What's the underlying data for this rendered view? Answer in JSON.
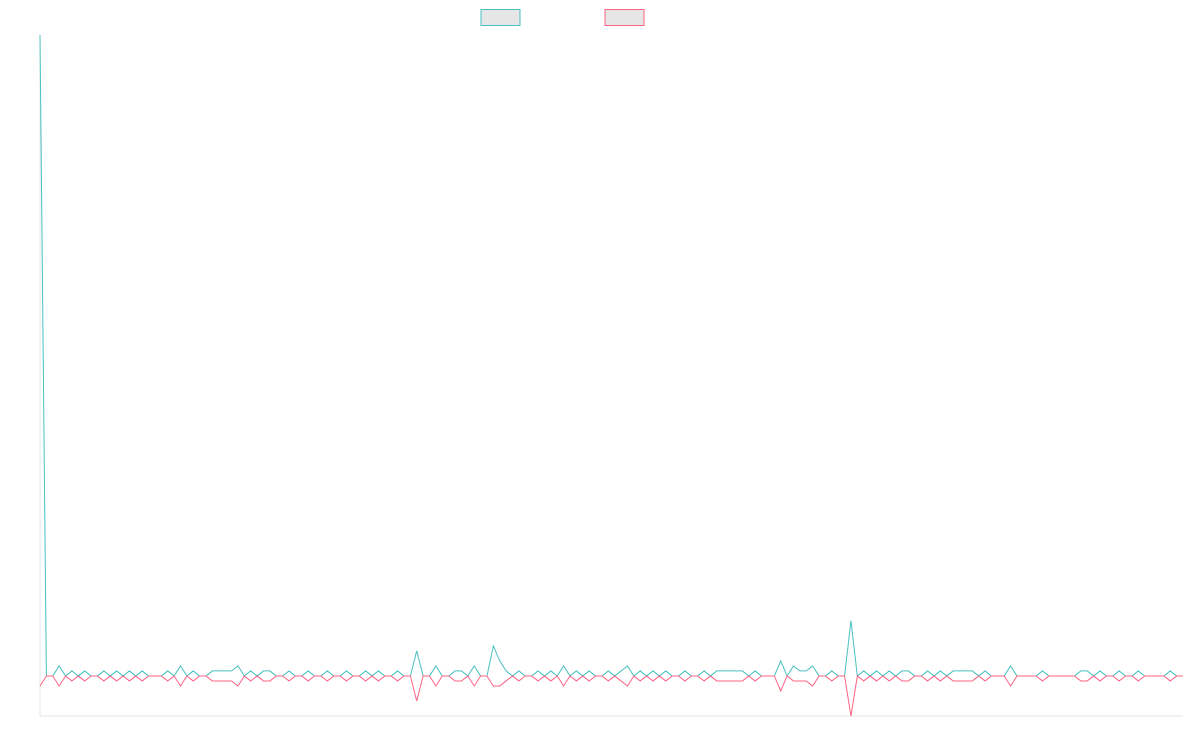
{
  "chart_data": {
    "type": "line",
    "series": [
      {
        "color": "#4bc0c0",
        "values": [
          128,
          0,
          0,
          2,
          0,
          1,
          0,
          1,
          0,
          0,
          1,
          0,
          1,
          0,
          1,
          0,
          1,
          0,
          0,
          0,
          1,
          0,
          2,
          0,
          1,
          0,
          0,
          1,
          1,
          1,
          1,
          2,
          0,
          1,
          0,
          1,
          1,
          0,
          0,
          1,
          0,
          0,
          1,
          0,
          0,
          1,
          0,
          0,
          1,
          0,
          0,
          1,
          0,
          1,
          0,
          0,
          1,
          0,
          0,
          5,
          0,
          0,
          2,
          0,
          0,
          1,
          1,
          0,
          2,
          0,
          0,
          6,
          3,
          1,
          0,
          1,
          0,
          0,
          1,
          0,
          1,
          0,
          2,
          0,
          1,
          0,
          1,
          0,
          0,
          1,
          0,
          1,
          2,
          0,
          1,
          0,
          1,
          0,
          1,
          0,
          0,
          1,
          0,
          0,
          1,
          0,
          1,
          1,
          1,
          1,
          1,
          0,
          1,
          0,
          0,
          0,
          3,
          0,
          2,
          1,
          1,
          2,
          0,
          0,
          1,
          0,
          0,
          11,
          0,
          1,
          0,
          1,
          0,
          1,
          0,
          1,
          1,
          0,
          0,
          1,
          0,
          1,
          0,
          1,
          1,
          1,
          1,
          0,
          1,
          0,
          0,
          0,
          2,
          0,
          0,
          0,
          0,
          1,
          0,
          0,
          0,
          0,
          0,
          1,
          1,
          0,
          1,
          0,
          0,
          1,
          0,
          0,
          1,
          0,
          0,
          0,
          0,
          1,
          0,
          0
        ]
      },
      {
        "color": "#ff6384",
        "values": [
          -2,
          0,
          0,
          -2,
          0,
          -1,
          0,
          -1,
          0,
          0,
          -1,
          0,
          -1,
          0,
          -1,
          0,
          -1,
          0,
          0,
          0,
          -1,
          0,
          -2,
          0,
          -1,
          0,
          0,
          -1,
          -1,
          -1,
          -1,
          -2,
          0,
          -1,
          0,
          -1,
          -1,
          0,
          0,
          -1,
          0,
          0,
          -1,
          0,
          0,
          -1,
          0,
          0,
          -1,
          0,
          0,
          -1,
          0,
          -1,
          0,
          0,
          -1,
          0,
          0,
          -5,
          0,
          0,
          -2,
          0,
          0,
          -1,
          -1,
          0,
          -2,
          0,
          0,
          -2,
          -2,
          -1,
          0,
          -1,
          0,
          0,
          -1,
          0,
          -1,
          0,
          -2,
          0,
          -1,
          0,
          -1,
          0,
          0,
          -1,
          0,
          -1,
          -2,
          0,
          -1,
          0,
          -1,
          0,
          -1,
          0,
          0,
          -1,
          0,
          0,
          -1,
          0,
          -1,
          -1,
          -1,
          -1,
          -1,
          0,
          -1,
          0,
          0,
          0,
          -3,
          0,
          -1,
          -1,
          -1,
          -2,
          0,
          0,
          -1,
          0,
          0,
          -8,
          0,
          -1,
          0,
          -1,
          0,
          -1,
          0,
          -1,
          -1,
          0,
          0,
          -1,
          0,
          -1,
          0,
          -1,
          -1,
          -1,
          -1,
          0,
          -1,
          0,
          0,
          0,
          -2,
          0,
          0,
          0,
          0,
          -1,
          0,
          0,
          0,
          0,
          0,
          -1,
          -1,
          0,
          -1,
          0,
          0,
          -1,
          0,
          0,
          -1,
          0,
          0,
          0,
          0,
          -1,
          0,
          0
        ]
      }
    ],
    "ylim": [
      -8,
      128
    ],
    "legend": "top"
  }
}
